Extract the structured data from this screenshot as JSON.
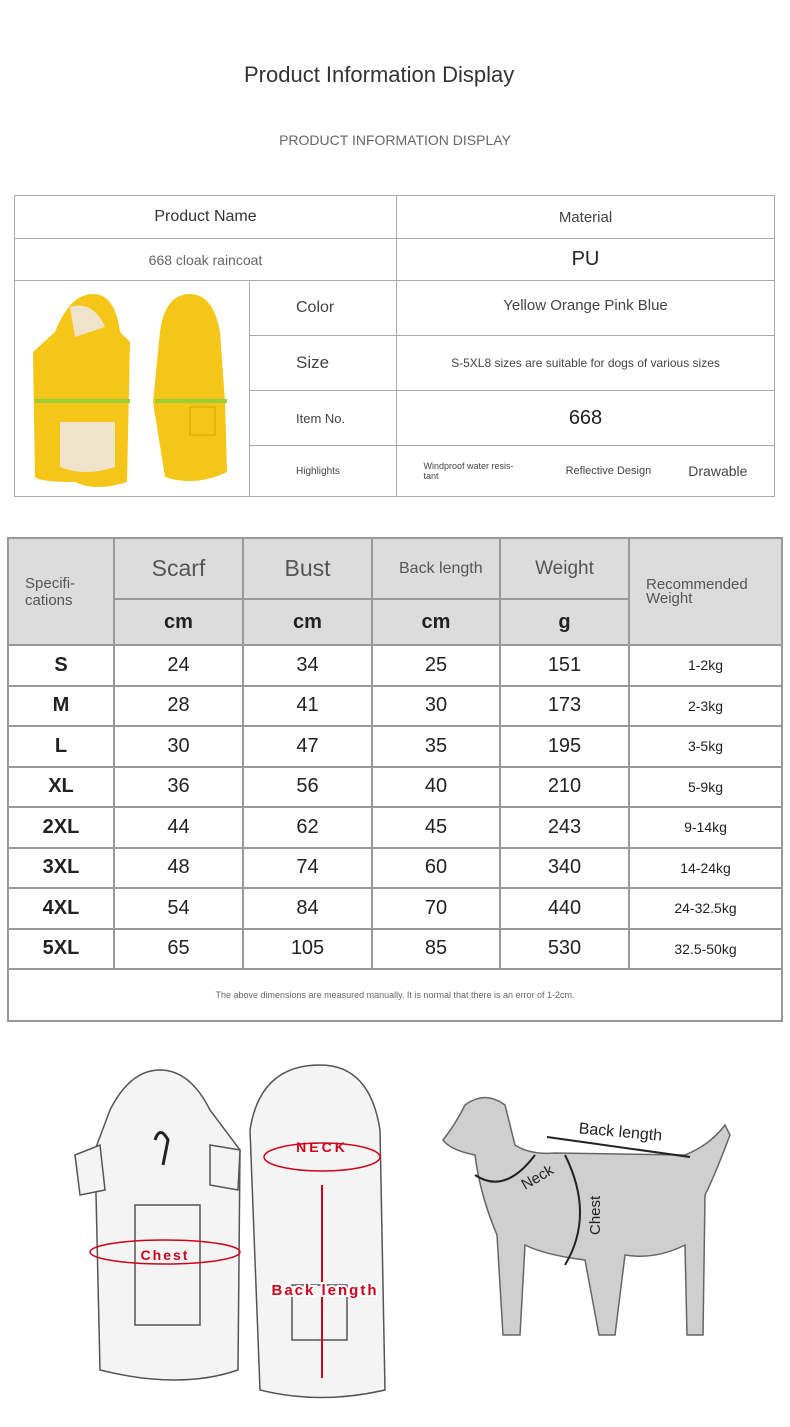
{
  "header": {
    "title": "Product Information Display",
    "subtitle": "PRODUCT INFORMATION DISPLAY"
  },
  "info": {
    "product_name_label": "Product Name",
    "material_label": "Material",
    "product_name": "668 cloak raincoat",
    "material": "PU",
    "color_label": "Color",
    "color": "Yellow Orange Pink Blue",
    "size_label": "Size",
    "size": "S-5XL8 sizes are suitable for dogs of various sizes",
    "item_label": "Item No.",
    "item": "668",
    "highlights_label": "Highlights",
    "highlights": [
      "Windproof water resis-tant",
      "Reflective Design",
      "Drawable"
    ],
    "product_color": "#f5c518"
  },
  "size_table": {
    "headers": {
      "spec": "Specifi-cations",
      "scarf": "Scarf",
      "bust": "Bust",
      "back": "Back length",
      "weight": "Weight",
      "rec": "Recommended Weight"
    },
    "units": [
      "cm",
      "cm",
      "cm",
      "g"
    ],
    "rows": [
      [
        "S",
        "24",
        "34",
        "25",
        "151",
        "1-2kg"
      ],
      [
        "M",
        "28",
        "41",
        "30",
        "173",
        "2-3kg"
      ],
      [
        "L",
        "30",
        "47",
        "35",
        "195",
        "3-5kg"
      ],
      [
        "XL",
        "36",
        "56",
        "40",
        "210",
        "5-9kg"
      ],
      [
        "2XL",
        "44",
        "62",
        "45",
        "243",
        "9-14kg"
      ],
      [
        "3XL",
        "48",
        "74",
        "60",
        "340",
        "14-24kg"
      ],
      [
        "4XL",
        "54",
        "84",
        "70",
        "440",
        "24-32.5kg"
      ],
      [
        "5XL",
        "65",
        "105",
        "85",
        "530",
        "32.5-50kg"
      ]
    ],
    "note": "The above dimensions are measured manually. It is normal that there is an error of 1-2cm."
  },
  "diagram": {
    "coat_neck": "NECK",
    "coat_chest": "Chest",
    "coat_back": "Back length",
    "dog_back": "Back length",
    "dog_neck": "Neck",
    "dog_chest": "Chest",
    "accent": "#d0021b"
  }
}
